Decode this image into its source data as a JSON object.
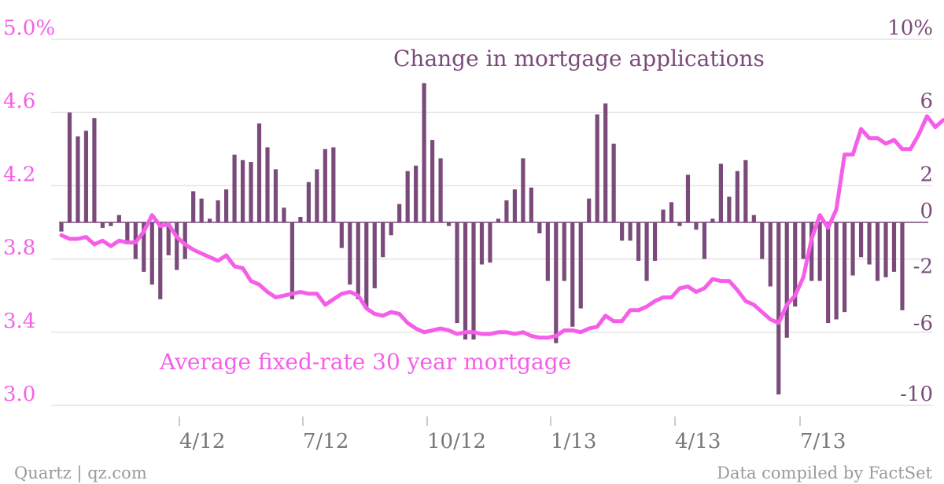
{
  "chart_data": {
    "type": "bar+line",
    "x_ticks": [
      "4/12",
      "7/12",
      "10/12",
      "1/13",
      "4/13",
      "7/13"
    ],
    "left_axis": {
      "ticks": [
        "5.0%",
        "4.6",
        "4.2",
        "3.8",
        "3.4",
        "3.0"
      ],
      "range": [
        3.0,
        5.0
      ],
      "color": "#f55ee8"
    },
    "right_axis": {
      "ticks": [
        "10%",
        "6",
        "2",
        "0",
        "-2",
        "-6",
        "-10"
      ],
      "range": [
        -10,
        10
      ],
      "color": "#7a4b7a"
    },
    "series": [
      {
        "name": "Change in mortgage applications",
        "type": "bar",
        "axis": "right",
        "color": "#7a4b7a",
        "values": [
          -0.5,
          6.0,
          4.7,
          5.0,
          5.7,
          -0.3,
          -0.2,
          0.4,
          -1.2,
          -2.0,
          -2.7,
          -3.4,
          -4.2,
          -1.8,
          -2.6,
          -2.0,
          1.7,
          1.3,
          0.2,
          1.2,
          1.8,
          3.7,
          3.4,
          3.3,
          5.4,
          4.1,
          2.9,
          0.8,
          -4.2,
          0.3,
          2.2,
          2.9,
          4.0,
          4.1,
          -1.4,
          -3.4,
          -4.2,
          -4.7,
          -3.6,
          -1.9,
          -0.7,
          1.0,
          2.8,
          3.1,
          7.6,
          4.5,
          3.5,
          -0.2,
          -5.5,
          -6.4,
          -6.4,
          -2.3,
          -2.2,
          0.2,
          1.2,
          1.8,
          3.5,
          1.9,
          -0.6,
          -3.2,
          -6.6,
          -3.2,
          -5.7,
          -4.7,
          1.3,
          5.9,
          6.5,
          4.3,
          -1.0,
          -1.0,
          -2.1,
          -3.2,
          -2.1,
          0.7,
          1.1,
          -0.2,
          2.6,
          -0.4,
          -2.0,
          0.2,
          3.2,
          1.4,
          2.8,
          3.4,
          0.4,
          -2.0,
          -3.5,
          -9.4,
          -6.3,
          -4.6,
          -2.0,
          -3.2,
          -3.2,
          -5.5,
          -5.3,
          -4.9,
          -2.9,
          -1.9,
          -2.3,
          -3.2,
          -3.0,
          -2.7,
          -4.8
        ]
      },
      {
        "name": "Average fixed-rate 30 year mortgage",
        "type": "line",
        "axis": "left",
        "color": "#f55ee8",
        "values": [
          3.93,
          3.91,
          3.91,
          3.92,
          3.88,
          3.9,
          3.87,
          3.9,
          3.89,
          3.89,
          3.95,
          4.04,
          3.98,
          3.99,
          3.92,
          3.88,
          3.85,
          3.83,
          3.81,
          3.79,
          3.82,
          3.76,
          3.75,
          3.68,
          3.66,
          3.62,
          3.59,
          3.6,
          3.61,
          3.62,
          3.61,
          3.61,
          3.55,
          3.58,
          3.61,
          3.62,
          3.6,
          3.53,
          3.5,
          3.49,
          3.51,
          3.5,
          3.45,
          3.42,
          3.4,
          3.41,
          3.42,
          3.41,
          3.39,
          3.4,
          3.4,
          3.39,
          3.39,
          3.4,
          3.4,
          3.39,
          3.4,
          3.38,
          3.37,
          3.37,
          3.38,
          3.41,
          3.41,
          3.4,
          3.42,
          3.43,
          3.49,
          3.46,
          3.46,
          3.52,
          3.52,
          3.54,
          3.57,
          3.59,
          3.59,
          3.64,
          3.65,
          3.62,
          3.64,
          3.69,
          3.68,
          3.68,
          3.63,
          3.57,
          3.55,
          3.51,
          3.47,
          3.45,
          3.55,
          3.6,
          3.7,
          3.91,
          4.04,
          3.97,
          4.07,
          4.37,
          4.37,
          4.51,
          4.46,
          4.46,
          4.43,
          4.45,
          4.4,
          4.4,
          4.48,
          4.58,
          4.52,
          4.56
        ]
      }
    ],
    "title": "",
    "xlabel": "",
    "ylabel": ""
  },
  "labels": {
    "bar_series": "Change in mortgage applications",
    "line_series": "Average fixed-rate 30 year mortgage"
  },
  "footer": {
    "source_left": "Quartz | qz.com",
    "source_right": "Data compiled by FactSet"
  }
}
